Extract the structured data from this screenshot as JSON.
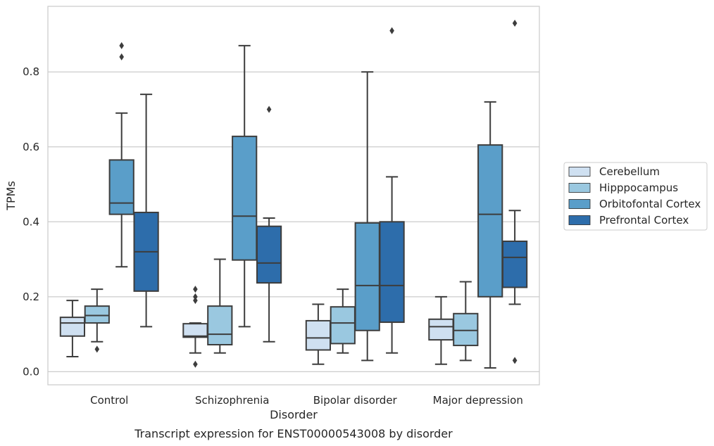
{
  "chart_data": {
    "type": "boxplot",
    "title": "Transcript expression for ENST00000543008 by disorder",
    "xlabel": "Disorder",
    "ylabel": "TPMs",
    "ylim": [
      -0.035,
      0.975
    ],
    "yticks": [
      0.0,
      0.2,
      0.4,
      0.6,
      0.8
    ],
    "ytick_labels": [
      "0.0",
      "0.2",
      "0.4",
      "0.6",
      "0.8"
    ],
    "categories": [
      "Control",
      "Schizophrenia",
      "Bipolar disorder",
      "Major depression"
    ],
    "grid": true,
    "legend_position": "right",
    "series": [
      {
        "name": "Cerebellum",
        "color": "#cfe0f1",
        "boxes": [
          {
            "whislo": 0.04,
            "q1": 0.095,
            "med": 0.13,
            "q3": 0.145,
            "whishi": 0.19,
            "fliers": []
          },
          {
            "whislo": 0.05,
            "q1": 0.092,
            "med": 0.095,
            "q3": 0.128,
            "whishi": 0.13,
            "fliers": [
              0.02,
              0.19,
              0.2,
              0.22
            ]
          },
          {
            "whislo": 0.02,
            "q1": 0.058,
            "med": 0.09,
            "q3": 0.136,
            "whishi": 0.18,
            "fliers": []
          },
          {
            "whislo": 0.02,
            "q1": 0.085,
            "med": 0.12,
            "q3": 0.14,
            "whishi": 0.2,
            "fliers": []
          }
        ]
      },
      {
        "name": "Hipppocampus",
        "color": "#9ac8e0",
        "boxes": [
          {
            "whislo": 0.08,
            "q1": 0.13,
            "med": 0.15,
            "q3": 0.175,
            "whishi": 0.22,
            "fliers": [
              0.06
            ]
          },
          {
            "whislo": 0.05,
            "q1": 0.072,
            "med": 0.1,
            "q3": 0.175,
            "whishi": 0.3,
            "fliers": []
          },
          {
            "whislo": 0.05,
            "q1": 0.075,
            "med": 0.13,
            "q3": 0.173,
            "whishi": 0.22,
            "fliers": []
          },
          {
            "whislo": 0.03,
            "q1": 0.07,
            "med": 0.11,
            "q3": 0.155,
            "whishi": 0.24,
            "fliers": []
          }
        ]
      },
      {
        "name": "Orbitofontal Cortex",
        "color": "#5a9ec9",
        "boxes": [
          {
            "whislo": 0.28,
            "q1": 0.42,
            "med": 0.45,
            "q3": 0.565,
            "whishi": 0.69,
            "fliers": [
              0.84,
              0.87
            ]
          },
          {
            "whislo": 0.12,
            "q1": 0.298,
            "med": 0.415,
            "q3": 0.628,
            "whishi": 0.87,
            "fliers": []
          },
          {
            "whislo": 0.03,
            "q1": 0.11,
            "med": 0.23,
            "q3": 0.397,
            "whishi": 0.8,
            "fliers": []
          },
          {
            "whislo": 0.01,
            "q1": 0.2,
            "med": 0.42,
            "q3": 0.605,
            "whishi": 0.72,
            "fliers": []
          }
        ]
      },
      {
        "name": "Prefrontal Cortex",
        "color": "#2d6dab",
        "boxes": [
          {
            "whislo": 0.12,
            "q1": 0.215,
            "med": 0.32,
            "q3": 0.425,
            "whishi": 0.74,
            "fliers": []
          },
          {
            "whislo": 0.08,
            "q1": 0.237,
            "med": 0.29,
            "q3": 0.388,
            "whishi": 0.41,
            "fliers": [
              0.7
            ]
          },
          {
            "whislo": 0.05,
            "q1": 0.132,
            "med": 0.23,
            "q3": 0.4,
            "whishi": 0.52,
            "fliers": [
              0.91
            ]
          },
          {
            "whislo": 0.18,
            "q1": 0.225,
            "med": 0.305,
            "q3": 0.348,
            "whishi": 0.43,
            "fliers": [
              0.03,
              0.93
            ]
          }
        ]
      }
    ]
  }
}
